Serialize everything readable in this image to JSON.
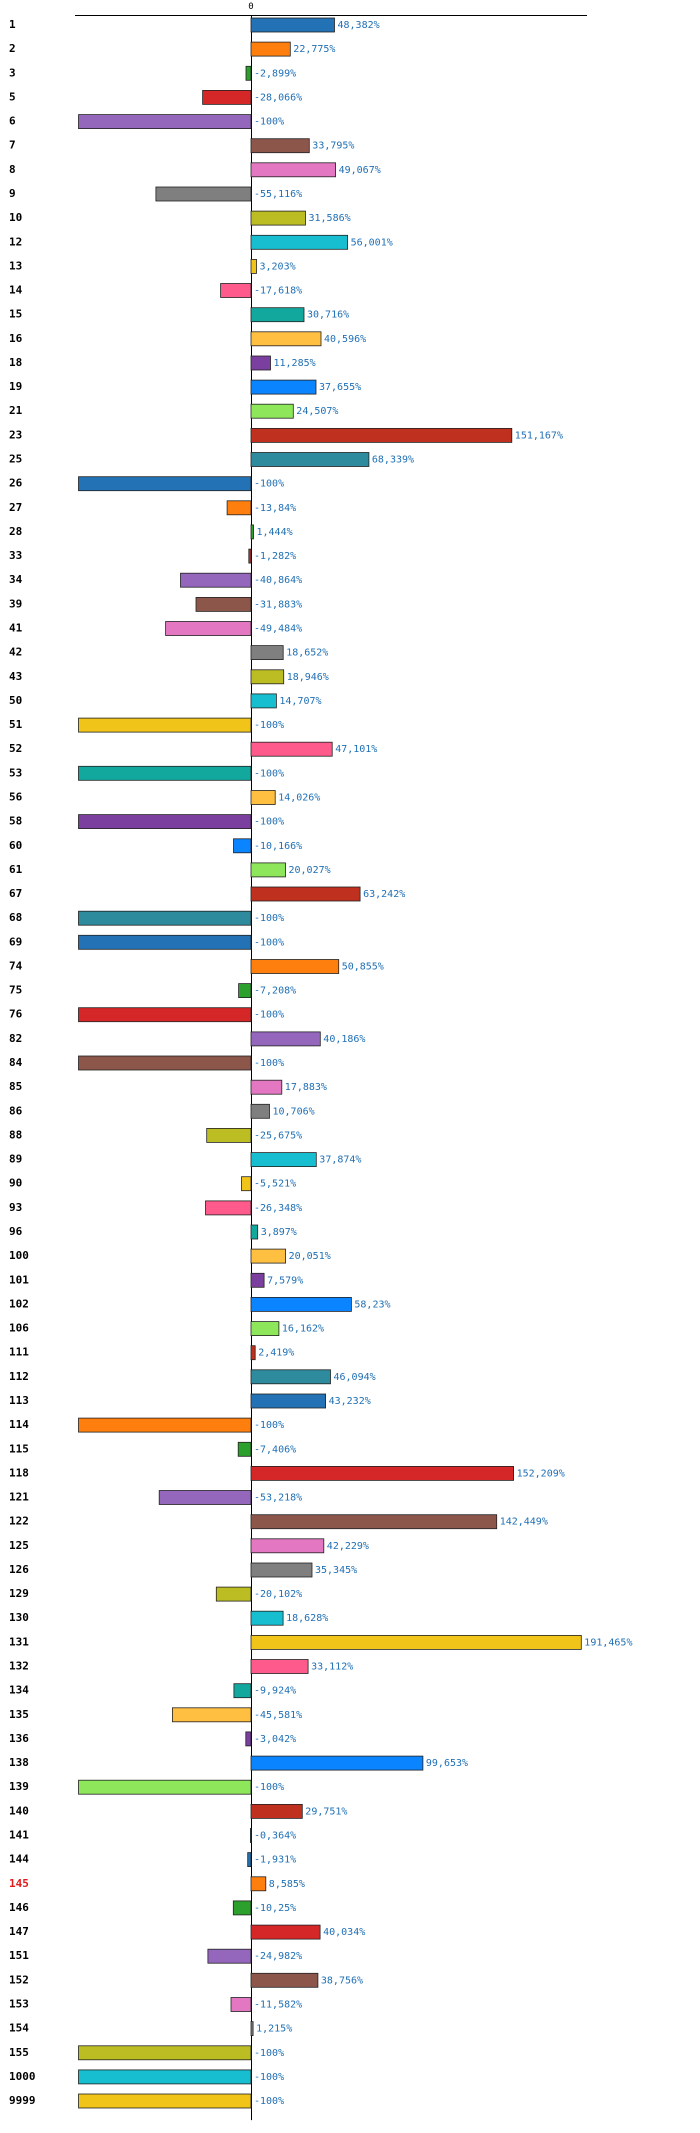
{
  "chart_data": {
    "type": "bar",
    "orientation": "horizontal",
    "title": "",
    "xlabel": "",
    "ylabel": "",
    "axis_tick_label": "0",
    "xlim": [
      -100,
      200
    ],
    "grid": false,
    "value_suffix": "%",
    "highlight_category": "145",
    "highlight_color": "#e01b1b",
    "categories": [
      "1",
      "2",
      "3",
      "5",
      "6",
      "7",
      "8",
      "9",
      "10",
      "12",
      "13",
      "14",
      "15",
      "16",
      "18",
      "19",
      "21",
      "23",
      "25",
      "26",
      "27",
      "28",
      "33",
      "34",
      "39",
      "41",
      "42",
      "43",
      "50",
      "51",
      "52",
      "53",
      "56",
      "58",
      "60",
      "61",
      "67",
      "68",
      "69",
      "74",
      "75",
      "76",
      "82",
      "84",
      "85",
      "86",
      "88",
      "89",
      "90",
      "93",
      "96",
      "100",
      "101",
      "102",
      "106",
      "111",
      "112",
      "113",
      "114",
      "115",
      "118",
      "121",
      "122",
      "125",
      "126",
      "129",
      "130",
      "131",
      "132",
      "134",
      "135",
      "136",
      "138",
      "139",
      "140",
      "141",
      "144",
      "145",
      "146",
      "147",
      "151",
      "152",
      "153",
      "154",
      "155",
      "1000",
      "9999"
    ],
    "values": [
      48.382,
      22.775,
      -2.899,
      -28.066,
      -100,
      33.795,
      49.067,
      -55.116,
      31.586,
      56.001,
      3.203,
      -17.618,
      30.716,
      40.596,
      11.285,
      37.655,
      24.507,
      151.167,
      68.339,
      -100,
      -13.84,
      1.444,
      -1.282,
      -40.864,
      -31.883,
      -49.484,
      18.652,
      18.946,
      14.707,
      -100,
      47.101,
      -100,
      14.026,
      -100,
      -10.166,
      20.027,
      63.242,
      -100,
      -100,
      50.855,
      -7.208,
      -100,
      40.186,
      -100,
      17.883,
      10.706,
      -25.675,
      37.874,
      -5.521,
      -26.348,
      3.897,
      20.051,
      7.579,
      58.23,
      16.162,
      2.419,
      46.094,
      43.232,
      -100,
      -7.406,
      152.209,
      -53.218,
      142.449,
      42.229,
      35.345,
      -20.102,
      18.628,
      191.465,
      33.112,
      -9.924,
      -45.581,
      -3.042,
      99.653,
      -100,
      29.751,
      -0.364,
      -1.931,
      8.585,
      -10.25,
      40.034,
      -24.982,
      38.756,
      -11.582,
      1.215,
      -100,
      -100,
      -100
    ],
    "value_labels": [
      "48,382%",
      "22,775%",
      "-2,899%",
      "-28,066%",
      "-100%",
      "33,795%",
      "49,067%",
      "-55,116%",
      "31,586%",
      "56,001%",
      "3,203%",
      "-17,618%",
      "30,716%",
      "40,596%",
      "11,285%",
      "37,655%",
      "24,507%",
      "151,167%",
      "68,339%",
      "-100%",
      "-13,84%",
      "1,444%",
      "-1,282%",
      "-40,864%",
      "-31,883%",
      "-49,484%",
      "18,652%",
      "18,946%",
      "14,707%",
      "-100%",
      "47,101%",
      "-100%",
      "14,026%",
      "-100%",
      "-10,166%",
      "20,027%",
      "63,242%",
      "-100%",
      "-100%",
      "50,855%",
      "-7,208%",
      "-100%",
      "40,186%",
      "-100%",
      "17,883%",
      "10,706%",
      "-25,675%",
      "37,874%",
      "-5,521%",
      "-26,348%",
      "3,897%",
      "20,051%",
      "7,579%",
      "58,23%",
      "16,162%",
      "2,419%",
      "46,094%",
      "43,232%",
      "-100%",
      "-7,406%",
      "152,209%",
      "-53,218%",
      "142,449%",
      "42,229%",
      "35,345%",
      "-20,102%",
      "18,628%",
      "191,465%",
      "33,112%",
      "-9,924%",
      "-45,581%",
      "-3,042%",
      "99,653%",
      "-100%",
      "29,751%",
      "-0,364%",
      "-1,931%",
      "8,585%",
      "-10,25%",
      "40,034%",
      "-24,982%",
      "38,756%",
      "-11,582%",
      "1,215%",
      "-100%",
      "-100%",
      "-100%"
    ],
    "palette": [
      "#2272b5",
      "#ff7f0e",
      "#2ca02c",
      "#d62728",
      "#9467bd",
      "#8c564b",
      "#e377c2",
      "#7f7f7f",
      "#bcbd22",
      "#17becf",
      "#f0c419",
      "#ff5a8c",
      "#13a89e",
      "#ffbf40",
      "#7b3fa0",
      "#0a84ff",
      "#8ee65a",
      "#c0301e",
      "#2e8b9e"
    ]
  }
}
